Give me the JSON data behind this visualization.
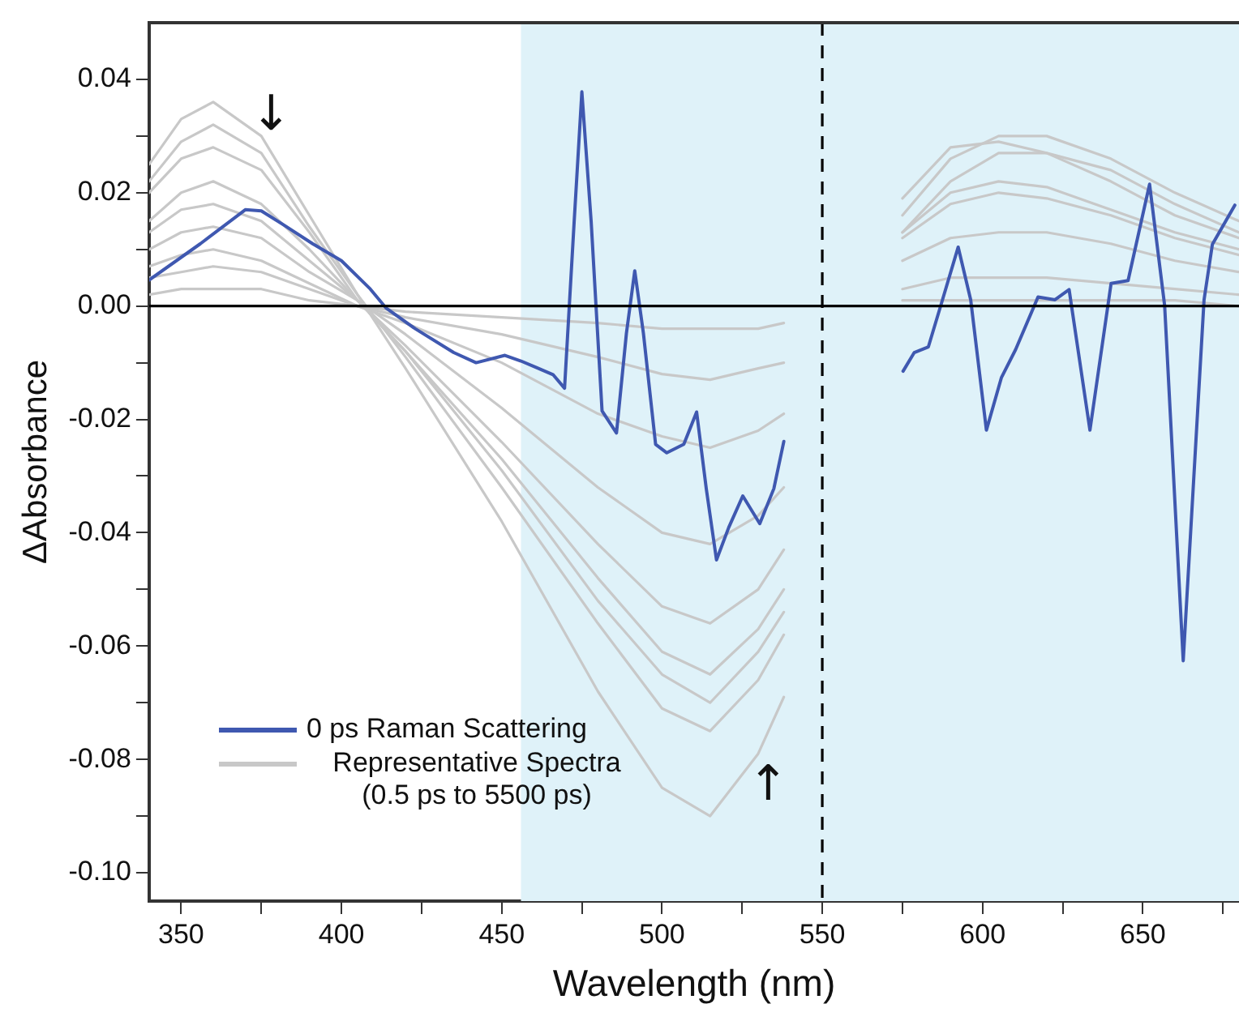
{
  "chart_data": {
    "type": "line",
    "xlabel": "Wavelength (nm)",
    "ylabel": "ΔAbsorbance",
    "xlim": [
      340,
      680
    ],
    "ylim": [
      -0.105,
      0.05
    ],
    "xticks": [
      350,
      {
        "value": 375,
        "label": null
      },
      400,
      {
        "value": 425,
        "label": null
      },
      450,
      {
        "value": 475,
        "label": null
      },
      500,
      {
        "value": 525,
        "label": null
      },
      550,
      {
        "value": 575,
        "label": null
      },
      600,
      {
        "value": 625,
        "label": null
      },
      650,
      {
        "value": 675,
        "label": null
      }
    ],
    "yticks": [
      {
        "value": -0.1,
        "label": "-0.10"
      },
      {
        "value": -0.09,
        "label": null
      },
      {
        "value": -0.08,
        "label": "-0.08"
      },
      {
        "value": -0.07,
        "label": null
      },
      {
        "value": -0.06,
        "label": "-0.06"
      },
      {
        "value": -0.05,
        "label": null
      },
      {
        "value": -0.04,
        "label": "-0.04"
      },
      {
        "value": -0.03,
        "label": null
      },
      {
        "value": -0.02,
        "label": "-0.02"
      },
      {
        "value": -0.01,
        "label": null
      },
      {
        "value": 0,
        "label": "0.00"
      },
      {
        "value": 0.01,
        "label": null
      },
      {
        "value": 0.02,
        "label": "0.02"
      },
      {
        "value": 0.03,
        "label": null
      },
      {
        "value": 0.04,
        "label": "0.04"
      }
    ],
    "grid": false,
    "legend": "bottom left",
    "marker": "none",
    "line_style": "solid",
    "x": [
      340,
      350,
      360,
      375,
      390,
      405,
      420,
      450,
      480,
      500,
      515,
      530,
      538,
      555,
      575,
      590,
      605,
      620,
      640,
      660,
      680
    ],
    "series": [
      {
        "name": "0 ps Raman Scattering",
        "color": "#3f58b0",
        "x": [
          340,
          356,
          370,
          375,
          382,
          391,
          400,
          409,
          414,
          423,
          435,
          442,
          451,
          456,
          461,
          466,
          469.6,
          472.6,
          475,
          477.9,
          481.3,
          485.8,
          488.9,
          491.5,
          494.2,
          498,
          501.5,
          506.8,
          510.8,
          513.8,
          517,
          520.8,
          525.2,
          530.5,
          534.9,
          538,
          555,
          575.2,
          578.7,
          583.1,
          587.5,
          592.4,
          596.3,
          601.2,
          605.9,
          610.3,
          617.3,
          622.6,
          627,
          633.5,
          640.1,
          645.4,
          652.1,
          656.8,
          662.6,
          669.1,
          671.7,
          678.7
        ],
        "values": [
          0.0046,
          0.011,
          0.017,
          0.0168,
          0.0143,
          0.011,
          0.008,
          0.003,
          -0.0004,
          -0.004,
          -0.0082,
          -0.01,
          -0.0087,
          -0.0097,
          -0.0109,
          -0.0121,
          -0.0145,
          0.0149,
          0.0378,
          0.0149,
          -0.0185,
          -0.0224,
          -0.0048,
          0.0062,
          -0.0048,
          -0.0244,
          -0.0259,
          -0.0244,
          -0.0187,
          -0.0322,
          -0.0448,
          -0.0391,
          -0.0335,
          -0.0384,
          -0.0322,
          -0.0239,
          null,
          -0.0115,
          -0.0082,
          -0.0072,
          0.0011,
          0.0104,
          0.0011,
          -0.0219,
          -0.0126,
          -0.0077,
          0.0016,
          0.0011,
          0.0029,
          -0.0219,
          0.004,
          0.0045,
          0.0215,
          0.0001,
          -0.0626,
          0.0011,
          0.0109,
          0.0178
        ]
      },
      {
        "name": "Representative Spectra (0.5 ps to 5500 ps)",
        "color": "#c8c8c8",
        "values": [
          0.025,
          0.033,
          0.036,
          0.03,
          0.016,
          0.002,
          -0.011,
          -0.038,
          -0.068,
          -0.085,
          -0.09,
          -0.079,
          -0.069,
          null,
          0.016,
          0.026,
          0.03,
          0.03,
          0.026,
          0.02,
          0.015
        ]
      },
      {
        "color": "#c8c8c8",
        "values": [
          0.022,
          0.029,
          0.032,
          0.027,
          0.014,
          0.002,
          -0.009,
          -0.032,
          -0.056,
          -0.071,
          -0.075,
          -0.066,
          -0.058,
          null,
          0.019,
          0.028,
          0.029,
          0.027,
          0.022,
          0.016,
          0.012
        ]
      },
      {
        "color": "#c8c8c8",
        "values": [
          0.02,
          0.026,
          0.028,
          0.024,
          0.013,
          0.001,
          -0.008,
          -0.029,
          -0.052,
          -0.065,
          -0.07,
          -0.061,
          -0.054,
          null,
          0.013,
          0.022,
          0.027,
          0.027,
          0.024,
          0.018,
          0.013
        ]
      },
      {
        "color": "#c8c8c8",
        "values": [
          0.015,
          0.02,
          0.022,
          0.018,
          0.01,
          0.001,
          -0.008,
          -0.027,
          -0.048,
          -0.061,
          -0.065,
          -0.057,
          -0.05,
          null,
          0.013,
          0.02,
          0.022,
          0.021,
          0.017,
          0.013,
          0.01
        ]
      },
      {
        "color": "#c8c8c8",
        "values": [
          0.013,
          0.017,
          0.018,
          0.015,
          0.008,
          0.001,
          -0.007,
          -0.024,
          -0.042,
          -0.053,
          -0.056,
          -0.05,
          -0.043,
          null,
          0.012,
          0.018,
          0.02,
          0.019,
          0.016,
          0.012,
          0.009
        ]
      },
      {
        "color": "#c8c8c8",
        "values": [
          0.01,
          0.013,
          0.014,
          0.012,
          0.006,
          0.001,
          -0.005,
          -0.018,
          -0.032,
          -0.04,
          -0.042,
          -0.037,
          -0.032,
          null,
          0.008,
          0.012,
          0.013,
          0.013,
          0.011,
          0.008,
          0.006
        ]
      },
      {
        "color": "#c8c8c8",
        "values": [
          0.007,
          0.009,
          0.01,
          0.008,
          0.004,
          0,
          -0.003,
          -0.01,
          -0.019,
          -0.023,
          -0.025,
          -0.022,
          -0.019,
          null,
          0.003,
          0.005,
          0.005,
          0.005,
          0.004,
          0.003,
          0.002
        ]
      },
      {
        "color": "#c8c8c8",
        "values": [
          0.005,
          0.006,
          0.007,
          0.006,
          0.003,
          0,
          -0.002,
          -0.005,
          -0.009,
          -0.012,
          -0.013,
          -0.011,
          -0.01,
          null,
          0.001,
          0.001,
          0.001,
          0.001,
          0.001,
          0.001,
          0
        ]
      },
      {
        "color": "#c8c8c8",
        "values": [
          0.002,
          0.003,
          0.003,
          0.003,
          0.001,
          0,
          -0.001,
          -0.002,
          -0.003,
          -0.004,
          -0.004,
          -0.004,
          -0.003,
          null,
          null,
          null,
          null,
          null,
          null,
          null,
          null
        ]
      }
    ],
    "bands": [
      {
        "axis": "x",
        "from": 456,
        "to": 680,
        "color": "#dff2f9"
      }
    ],
    "ref_lines": [
      {
        "axis": "y",
        "value": 0,
        "color": "#000000",
        "line_style": "solid"
      },
      {
        "axis": "x",
        "value": 550,
        "color": "#000000",
        "line_style": "dashed"
      }
    ],
    "annotations": [
      "↓",
      "↑"
    ]
  }
}
